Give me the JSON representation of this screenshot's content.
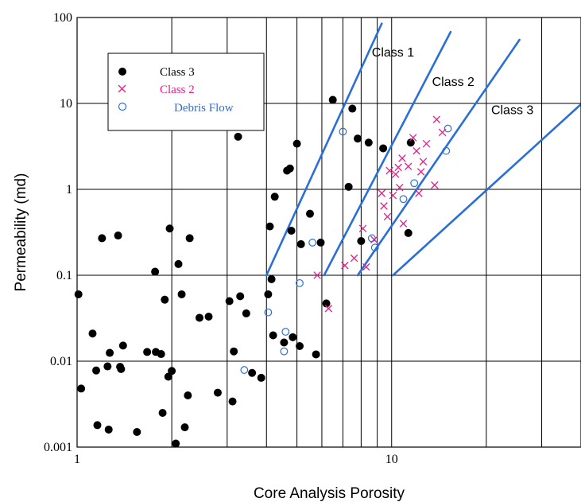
{
  "chart_data": {
    "type": "scatter",
    "title": "",
    "xlabel": "Core Analysis Porosity",
    "ylabel": "Permeability (md)",
    "xscale": "log",
    "yscale": "log",
    "xlim": [
      1,
      40
    ],
    "ylim": [
      0.001,
      100
    ],
    "x_tick_labels": [
      {
        "value": 1,
        "label": "1"
      },
      {
        "value": 10,
        "label": "10"
      }
    ],
    "y_tick_labels": [
      {
        "value": 0.001,
        "label": "0.001"
      },
      {
        "value": 0.01,
        "label": "0.01"
      },
      {
        "value": 0.1,
        "label": "0.1"
      },
      {
        "value": 1,
        "label": "1"
      },
      {
        "value": 10,
        "label": "10"
      },
      {
        "value": 100,
        "label": "100"
      }
    ],
    "grid": true,
    "grid_x": [
      1,
      2,
      3,
      4,
      5,
      6,
      7,
      8,
      9,
      10,
      20,
      30,
      40
    ],
    "grid_y": [
      0.001,
      0.01,
      0.1,
      1,
      10,
      100
    ],
    "legend": {
      "position": "top-left"
    },
    "series": [
      {
        "name": "Class 3",
        "marker": "filled-circle",
        "color": "#000000",
        "points": [
          [
            1.01,
            0.06
          ],
          [
            1.03,
            0.0048
          ],
          [
            1.12,
            0.021
          ],
          [
            1.15,
            0.0078
          ],
          [
            1.16,
            0.0018
          ],
          [
            1.2,
            0.27
          ],
          [
            1.25,
            0.0087
          ],
          [
            1.26,
            0.0016
          ],
          [
            1.27,
            0.0125
          ],
          [
            1.35,
            0.29
          ],
          [
            1.37,
            0.0086
          ],
          [
            1.38,
            0.0081
          ],
          [
            1.4,
            0.0152
          ],
          [
            1.55,
            0.0015
          ],
          [
            1.67,
            0.0128
          ],
          [
            1.77,
            0.11
          ],
          [
            1.78,
            0.0128
          ],
          [
            1.85,
            0.0121
          ],
          [
            1.87,
            0.0025
          ],
          [
            1.9,
            0.052
          ],
          [
            1.95,
            0.0066
          ],
          [
            1.97,
            0.35
          ],
          [
            2.0,
            0.0077
          ],
          [
            2.06,
            0.0011
          ],
          [
            2.1,
            0.135
          ],
          [
            2.15,
            0.06
          ],
          [
            2.2,
            0.0017
          ],
          [
            2.25,
            0.004
          ],
          [
            2.28,
            0.27
          ],
          [
            2.45,
            0.032
          ],
          [
            2.62,
            0.033
          ],
          [
            2.8,
            0.0043
          ],
          [
            3.05,
            0.05
          ],
          [
            3.12,
            0.0034
          ],
          [
            3.15,
            0.013
          ],
          [
            3.25,
            4.1
          ],
          [
            3.3,
            0.057
          ],
          [
            3.45,
            0.036
          ],
          [
            3.6,
            0.0073
          ],
          [
            3.85,
            0.0064
          ],
          [
            4.05,
            0.06
          ],
          [
            4.1,
            0.37
          ],
          [
            4.15,
            0.09
          ],
          [
            4.2,
            0.02
          ],
          [
            4.25,
            0.82
          ],
          [
            4.55,
            0.0165
          ],
          [
            4.65,
            1.65
          ],
          [
            4.75,
            1.75
          ],
          [
            4.8,
            0.33
          ],
          [
            4.85,
            0.019
          ],
          [
            5.0,
            3.4
          ],
          [
            5.1,
            0.015
          ],
          [
            5.15,
            0.23
          ],
          [
            5.5,
            0.52
          ],
          [
            5.75,
            0.012
          ],
          [
            5.95,
            0.24
          ],
          [
            6.2,
            0.047
          ],
          [
            6.5,
            11
          ],
          [
            7.3,
            1.07
          ],
          [
            7.5,
            8.7
          ],
          [
            7.8,
            3.9
          ],
          [
            8.0,
            0.25
          ],
          [
            8.45,
            3.5
          ],
          [
            9.4,
            3.0
          ],
          [
            11.5,
            3.5
          ],
          [
            11.3,
            0.31
          ]
        ]
      },
      {
        "name": "Class 2",
        "marker": "x",
        "color": "#e0218a",
        "points": [
          [
            5.8,
            0.1
          ],
          [
            6.3,
            0.041
          ],
          [
            7.1,
            0.13
          ],
          [
            7.6,
            0.158
          ],
          [
            8.1,
            0.35
          ],
          [
            8.3,
            0.125
          ],
          [
            8.8,
            0.26
          ],
          [
            9.3,
            0.9
          ],
          [
            9.45,
            0.64
          ],
          [
            9.7,
            0.48
          ],
          [
            9.85,
            1.65
          ],
          [
            10.1,
            0.85
          ],
          [
            10.3,
            1.5
          ],
          [
            10.5,
            1.8
          ],
          [
            10.6,
            1.05
          ],
          [
            10.8,
            2.3
          ],
          [
            10.9,
            0.4
          ],
          [
            11.3,
            1.85
          ],
          [
            11.7,
            4.0
          ],
          [
            12.0,
            2.8
          ],
          [
            12.4,
            1.6
          ],
          [
            12.6,
            2.1
          ],
          [
            12.9,
            3.4
          ],
          [
            13.7,
            1.12
          ],
          [
            13.9,
            6.5
          ],
          [
            14.5,
            4.6
          ],
          [
            12.2,
            0.9
          ]
        ]
      },
      {
        "name": "Debris Flow",
        "marker": "open-circle",
        "color": "#2a6fd8",
        "points": [
          [
            3.4,
            0.0079
          ],
          [
            4.05,
            0.037
          ],
          [
            4.55,
            0.013
          ],
          [
            4.6,
            0.022
          ],
          [
            5.1,
            0.081
          ],
          [
            5.6,
            0.24
          ],
          [
            7.0,
            4.7
          ],
          [
            8.65,
            0.27
          ],
          [
            8.85,
            0.21
          ],
          [
            10.9,
            0.77
          ],
          [
            11.8,
            1.18
          ],
          [
            14.9,
            2.8
          ],
          [
            15.1,
            5.1
          ]
        ]
      }
    ],
    "boundary_lines": {
      "color": "#2a6fd8",
      "lines": [
        {
          "label": "Class 1",
          "from": [
            4.0,
            0.1
          ],
          "to": [
            9.3,
            85
          ]
        },
        {
          "label": "Class 2",
          "from": [
            6.1,
            0.1
          ],
          "to": [
            15.4,
            68
          ]
        },
        {
          "label": "Class 3",
          "from": [
            7.8,
            0.1
          ],
          "to": [
            25.5,
            55
          ]
        },
        {
          "label": "",
          "from": [
            10.1,
            0.1
          ],
          "to": [
            40,
            9.8
          ]
        }
      ],
      "labels": [
        {
          "text": "Class 1",
          "at": [
            10.1,
            35
          ]
        },
        {
          "text": "Class 2",
          "at": [
            15.7,
            16
          ]
        },
        {
          "text": "Class 3",
          "at": [
            24.2,
            7.5
          ]
        }
      ]
    }
  }
}
